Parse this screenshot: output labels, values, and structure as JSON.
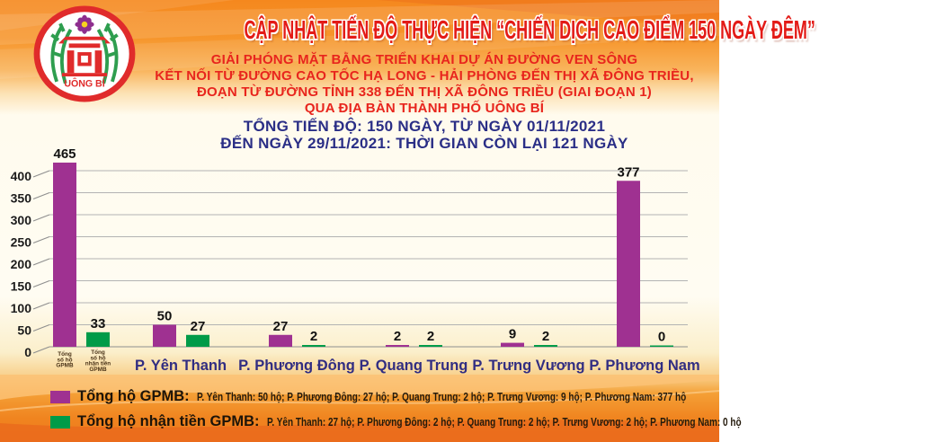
{
  "header": {
    "title": "CẬP NHẬT TIẾN ĐỘ THỰC HIỆN “CHIẾN DỊCH CAO ĐIỂM 150 NGÀY ĐÊM”",
    "subtitle_lines": [
      "GIẢI PHÓNG MẶT BẰNG TRIỂN KHAI DỰ ÁN ĐƯỜNG VEN SÔNG",
      "KẾT NỐI TỪ ĐƯỜNG CAO TỐC HẠ LONG - HẢI PHÒNG ĐẾN THỊ XÃ ĐÔNG TRIỀU,",
      "ĐOẠN TỪ ĐƯỜNG TỈNH 338 ĐẾN THỊ XÃ ĐÔNG TRIỀU (GIAI ĐOẠN 1)",
      "QUA ĐỊA BÀN THÀNH PHỐ UÔNG BÍ"
    ],
    "progress_lines": [
      "TỔNG TIẾN ĐỘ: 150 NGÀY, TỪ NGÀY 01/11/2021",
      "ĐẾN NGÀY 29/11/2021: THỜI GIAN CÒN LẠI 121 NGÀY"
    ],
    "logo": {
      "city_name": "UÔNG BÍ"
    }
  },
  "chart_data": {
    "type": "bar",
    "categories": [
      "",
      "P. Yên Thanh",
      "P. Phương Đông",
      "P. Quang Trung",
      "P. Trưng Vương",
      "P. Phương Nam"
    ],
    "series": [
      {
        "name": "Tổng hộ GPMB",
        "color": "#9F3191",
        "values": [
          465,
          50,
          27,
          2,
          9,
          377
        ]
      },
      {
        "name": "Tổng hộ nhận tiền GPMB",
        "color": "#009B48",
        "values": [
          33,
          27,
          2,
          2,
          2,
          0
        ]
      }
    ],
    "first_group_bar_labels": [
      [
        "Tổng",
        "số hộ",
        "GPMB"
      ],
      [
        "Tổng",
        "số hộ",
        "nhận tiền",
        "GPMB"
      ]
    ],
    "ylim": [
      0,
      400
    ],
    "ytick_step": 50,
    "grid": true,
    "legend_position": "bottom"
  },
  "legend": {
    "rows": [
      {
        "swatch_color": "#9F3191",
        "label": "Tổng hộ GPMB:",
        "detail": "P. Yên Thanh: 50 hộ; P. Phương Đông: 27 hộ; P. Quang Trung: 2 hộ;  P. Trưng Vương: 9 hộ; P. Phương Nam: 377 hộ"
      },
      {
        "swatch_color": "#009B48",
        "label": "Tổng hộ nhận tiền GPMB:",
        "detail": "P. Yên Thanh: 27 hộ; P. Phương Đông: 2 hộ;  P. Quang Trung: 2 hộ;  P. Trưng Vương: 2 hộ; P. Phương Nam: 0 hộ"
      }
    ]
  },
  "colors": {
    "title_red": "#E31B17",
    "navy": "#2A2E86",
    "bar_purple": "#9F3191",
    "bar_green": "#009B48",
    "grid_gray": "#B3B3B3"
  }
}
